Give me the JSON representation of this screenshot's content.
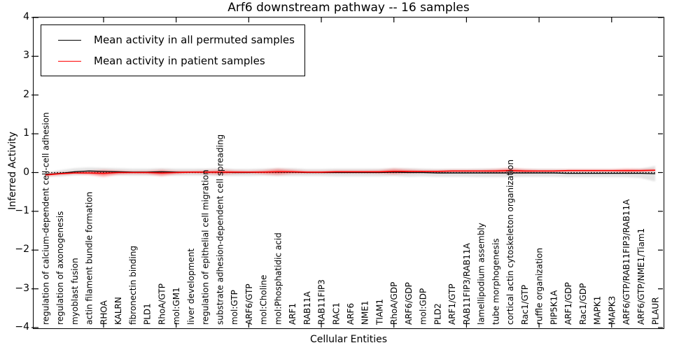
{
  "chart_data": {
    "type": "line",
    "title": "Arf6 downstream pathway -- 16 samples",
    "xlabel": "Cellular Entities",
    "ylabel": "Inferred Activity",
    "ylim": [
      -4,
      4
    ],
    "y_ticks": [
      4,
      3,
      2,
      1,
      0,
      -1,
      -2,
      -3,
      -4
    ],
    "y_tick_labels": [
      "4",
      "3",
      "2",
      "1",
      "0",
      "−1",
      "−2",
      "−3",
      "−4"
    ],
    "x_major_tick_indices": [
      4,
      9,
      14,
      19,
      24,
      29,
      34,
      39
    ],
    "grid": false,
    "legend_position": "upper left",
    "zero_line": {
      "style": "dotted",
      "color": "#000000",
      "y": 0
    },
    "categories": [
      "regulation of calcium-dependent cell-cell adhesion",
      "regulation of axonogenesis",
      "myoblast fusion",
      "actin filament bundle formation",
      "RHOA",
      "KALRN",
      "fibronectin binding",
      "PLD1",
      "RhoA/GTP",
      "mol:GM1",
      "liver development",
      "regulation of epithelial cell migration",
      "substrate adhesion-dependent cell spreading",
      "mol:GTP",
      "ARF6/GTP",
      "mol:Choline",
      "mol:Phosphatidic acid",
      "ARF1",
      "RAB11A",
      "RAB11FIP3",
      "RAC1",
      "ARF6",
      "NME1",
      "TIAM1",
      "RhoA/GDP",
      "ARF6/GDP",
      "mol:GDP",
      "PLD2",
      "ARF1/GTP",
      "RAB11FIP3/RAB11A",
      "lamellipodium assembly",
      "tube morphogenesis",
      "cortical actin cytoskeleton organization",
      "Rac1/GTP",
      "ruffle organization",
      "PIP5K1A",
      "ARF1/GDP",
      "Rac1/GDP",
      "MAPK1",
      "MAPK3",
      "ARF6/GTP/RAB11FIP3/RAB11A",
      "ARF6/GTP/NME1/Tiam1",
      "PLAUR"
    ],
    "series": [
      {
        "name": "Mean activity in all permuted samples",
        "color": "#000000",
        "band_color": "#c8c8c8",
        "values": [
          -0.05,
          -0.02,
          0.02,
          0.04,
          0.03,
          0.02,
          0.01,
          0.01,
          0.02,
          0.01,
          0.01,
          0.01,
          0.01,
          0.0,
          0.0,
          0.01,
          0.01,
          0.01,
          0.0,
          0.0,
          0.0,
          0.0,
          0.0,
          0.0,
          0.01,
          0.0,
          0.0,
          -0.01,
          -0.01,
          -0.01,
          -0.01,
          -0.01,
          -0.01,
          -0.01,
          -0.01,
          -0.01,
          -0.02,
          -0.02,
          -0.02,
          -0.02,
          -0.02,
          -0.02,
          -0.03
        ],
        "band_halfwidth": [
          0.05,
          0.08,
          0.09,
          0.09,
          0.09,
          0.09,
          0.09,
          0.09,
          0.09,
          0.09,
          0.09,
          0.09,
          0.1,
          0.09,
          0.09,
          0.09,
          0.1,
          0.1,
          0.09,
          0.09,
          0.1,
          0.1,
          0.1,
          0.1,
          0.1,
          0.11,
          0.1,
          0.1,
          0.1,
          0.1,
          0.11,
          0.11,
          0.11,
          0.1,
          0.1,
          0.1,
          0.1,
          0.1,
          0.1,
          0.1,
          0.1,
          0.12,
          0.2
        ]
      },
      {
        "name": "Mean activity in patient samples",
        "color": "#ff0000",
        "band_color": "#ff3030",
        "values": [
          -0.06,
          -0.03,
          -0.01,
          -0.01,
          -0.02,
          0.0,
          0.0,
          0.0,
          -0.01,
          0.0,
          0.01,
          0.01,
          0.01,
          0.01,
          0.01,
          0.01,
          0.02,
          0.02,
          0.01,
          0.01,
          0.02,
          0.02,
          0.02,
          0.02,
          0.03,
          0.03,
          0.03,
          0.03,
          0.04,
          0.04,
          0.04,
          0.04,
          0.05,
          0.04,
          0.04,
          0.04,
          0.05,
          0.05,
          0.05,
          0.05,
          0.05,
          0.05,
          0.06
        ],
        "band_halfwidth": [
          0.03,
          0.02,
          0.02,
          0.04,
          0.09,
          0.04,
          0.02,
          0.03,
          0.08,
          0.03,
          0.02,
          0.03,
          0.06,
          0.03,
          0.02,
          0.04,
          0.08,
          0.04,
          0.02,
          0.02,
          0.02,
          0.02,
          0.02,
          0.03,
          0.07,
          0.04,
          0.02,
          0.02,
          0.02,
          0.02,
          0.02,
          0.04,
          0.06,
          0.04,
          0.02,
          0.02,
          0.02,
          0.02,
          0.02,
          0.02,
          0.04,
          0.03,
          0.02
        ]
      }
    ]
  }
}
